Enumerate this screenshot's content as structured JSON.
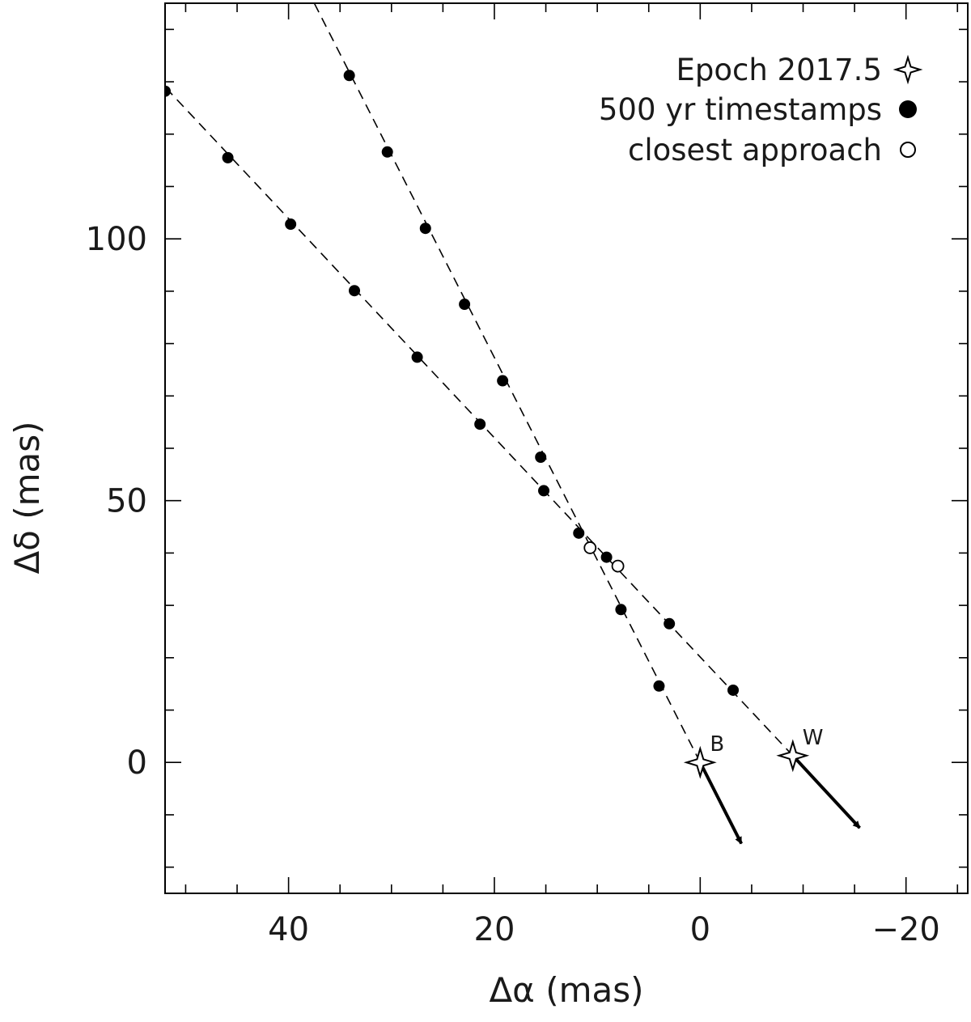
{
  "chart_data": {
    "type": "scatter",
    "title": "",
    "xlabel": "Δα (mas)",
    "ylabel": "Δδ (mas)",
    "xlim": [
      52,
      -26
    ],
    "ylim": [
      -25,
      145
    ],
    "x_inverted": true,
    "x_ticks": [
      40,
      20,
      0,
      -20
    ],
    "x_tick_labels": [
      "40",
      "20",
      "0",
      "−20"
    ],
    "x_minor_step": 5,
    "y_ticks": [
      0,
      50,
      100
    ],
    "y_tick_labels": [
      "0",
      "50",
      "100"
    ],
    "y_minor_step": 10,
    "grid": false,
    "legend_position": "top-right",
    "legend": [
      {
        "label": "Epoch 2017.5",
        "marker": "star-open"
      },
      {
        "label": "500 yr timestamps",
        "marker": "circle-filled"
      },
      {
        "label": "closest approach",
        "marker": "circle-open"
      }
    ],
    "series": [
      {
        "name": "B",
        "epoch": {
          "x": 0,
          "y": 0
        },
        "track_ends": [
          [
            0,
            0
          ],
          [
            37.5,
            145
          ]
        ],
        "timestamps": [
          [
            4,
            14.6
          ],
          [
            7.7,
            29.2
          ],
          [
            11.8,
            43.8
          ],
          [
            15.5,
            58.3
          ],
          [
            19.2,
            72.9
          ],
          [
            22.9,
            87.5
          ],
          [
            26.7,
            102
          ],
          [
            30.4,
            116.6
          ],
          [
            34.1,
            131.2
          ]
        ],
        "closest_approach": {
          "x": 10.7,
          "y": 41
        },
        "motion_arrow": {
          "from": [
            0,
            0
          ],
          "to": [
            -4,
            -15.5
          ]
        }
      },
      {
        "name": "W",
        "epoch": {
          "x": -9,
          "y": 1.3
        },
        "track_ends": [
          [
            -9,
            1.3
          ],
          [
            52,
            129
          ]
        ],
        "timestamps": [
          [
            -3.2,
            13.8
          ],
          [
            3,
            26.5
          ],
          [
            9.1,
            39.2
          ],
          [
            15.2,
            51.9
          ],
          [
            21.4,
            64.6
          ],
          [
            27.5,
            77.4
          ],
          [
            33.6,
            90.1
          ],
          [
            39.8,
            102.8
          ],
          [
            45.9,
            115.5
          ],
          [
            52,
            128.2
          ]
        ],
        "closest_approach": {
          "x": 8,
          "y": 37.5
        },
        "motion_arrow": {
          "from": [
            -9,
            1.3
          ],
          "to": [
            -15.5,
            -12.5
          ]
        }
      }
    ]
  }
}
